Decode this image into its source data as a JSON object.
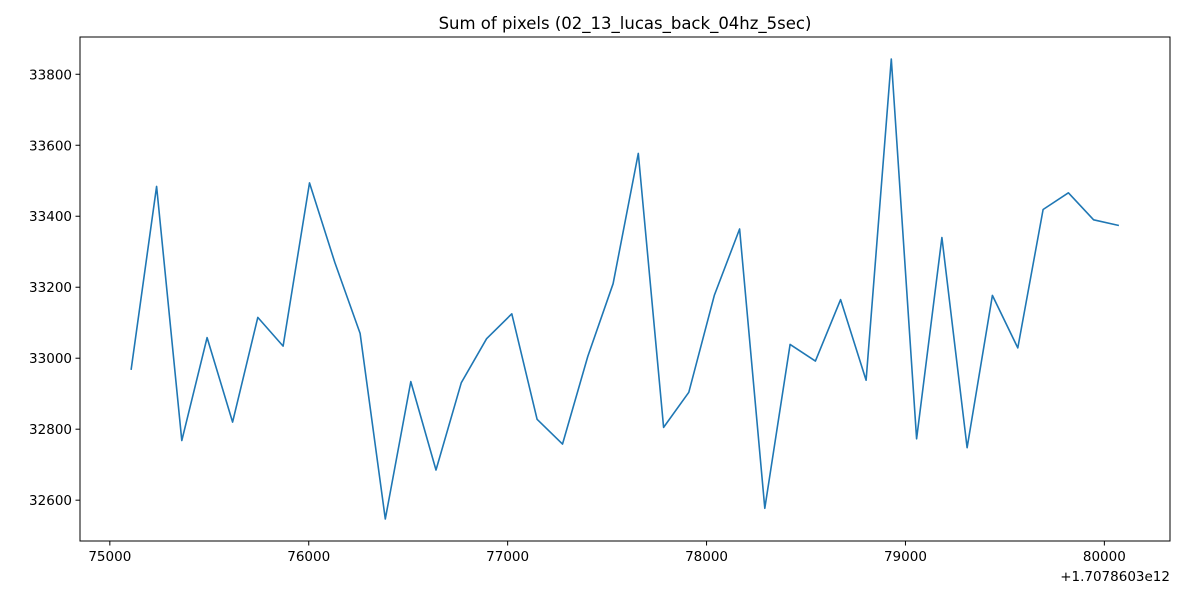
{
  "chart_data": {
    "type": "line",
    "title": "Sum of pixels (02_13_lucas_back_04hz_5sec)",
    "xlabel": "",
    "ylabel": "",
    "x_offset_label": "+1.7078603e12",
    "xlim": [
      74850,
      80330
    ],
    "ylim": [
      32485,
      33905
    ],
    "xticks": [
      75000,
      76000,
      77000,
      78000,
      79000,
      80000
    ],
    "yticks": [
      32600,
      32800,
      33000,
      33200,
      33400,
      33600,
      33800
    ],
    "grid": false,
    "color": "#1f77b4",
    "series": [
      {
        "x": [
          75107,
          75235,
          75362,
          75489,
          75617,
          75744,
          75871,
          76004,
          76131,
          76258,
          76385,
          76513,
          76640,
          76767,
          76894,
          77021,
          77148,
          77276,
          77403,
          77530,
          77657,
          77784,
          77911,
          78039,
          78166,
          78293,
          78420,
          78547,
          78674,
          78802,
          78929,
          79056,
          79183,
          79310,
          79437,
          79565,
          79692,
          79819,
          79946,
          80073
        ],
        "y": [
          32967,
          33484,
          32768,
          33058,
          32820,
          33115,
          33034,
          33494,
          33270,
          33070,
          32547,
          32934,
          32685,
          32931,
          33055,
          33125,
          32828,
          32758,
          33005,
          33210,
          33577,
          32805,
          32904,
          33177,
          33364,
          32577,
          33039,
          32992,
          33165,
          32938,
          33843,
          32773,
          33340,
          32748,
          33177,
          33029,
          33419,
          33466,
          33390,
          33374
        ]
      }
    ]
  }
}
